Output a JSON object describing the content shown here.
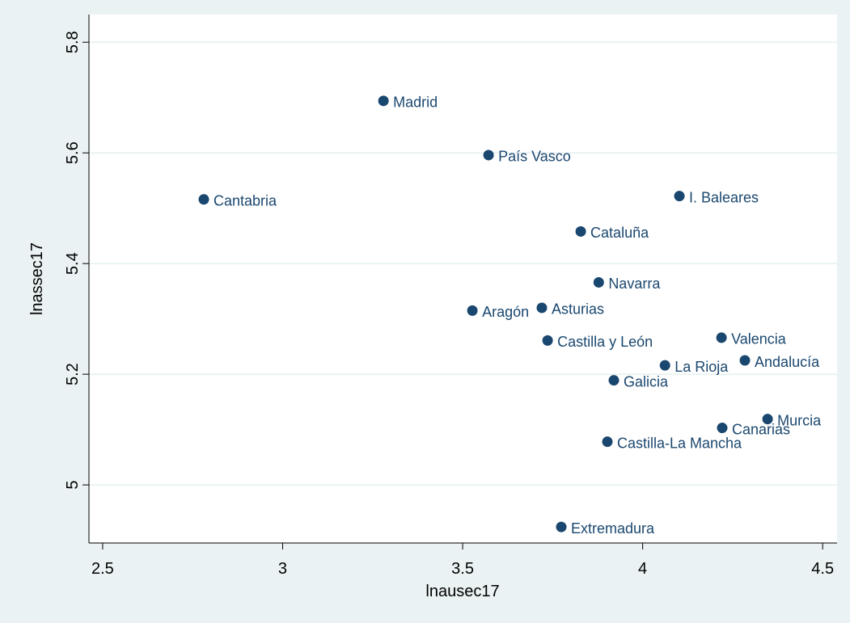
{
  "chart_data": {
    "type": "scatter",
    "x_label": "lnausec17",
    "y_label": "lnassec17",
    "point_labels": [
      "Madrid",
      "País Vasco",
      "Cantabria",
      "I. Baleares",
      "Cataluña",
      "Navarra",
      "Aragón",
      "Asturias",
      "Castilla y León",
      "Valencia",
      "Andalucía",
      "La Rioja",
      "Galicia",
      "Murcia",
      "Canarias",
      "Castilla-La Mancha",
      "Extremadura"
    ],
    "x": [
      3.28,
      3.572,
      2.781,
      4.102,
      3.828,
      3.878,
      3.527,
      3.72,
      3.736,
      4.219,
      4.284,
      4.062,
      3.92,
      4.347,
      4.221,
      3.902,
      3.774
    ],
    "series": [
      {
        "color": "#1a476f",
        "values": [
          5.694,
          5.596,
          5.516,
          5.522,
          5.458,
          5.366,
          5.315,
          5.32,
          5.261,
          5.266,
          5.225,
          5.216,
          5.189,
          5.119,
          5.103,
          5.078,
          4.924
        ]
      }
    ],
    "xlim": [
      2.462,
      4.54
    ],
    "ylim": [
      4.895,
      5.85
    ],
    "xticks": [
      2.5,
      3,
      3.5,
      4,
      4.5
    ],
    "yticks": [
      5,
      5.2,
      5.4,
      5.6,
      5.8
    ],
    "grid": true
  }
}
